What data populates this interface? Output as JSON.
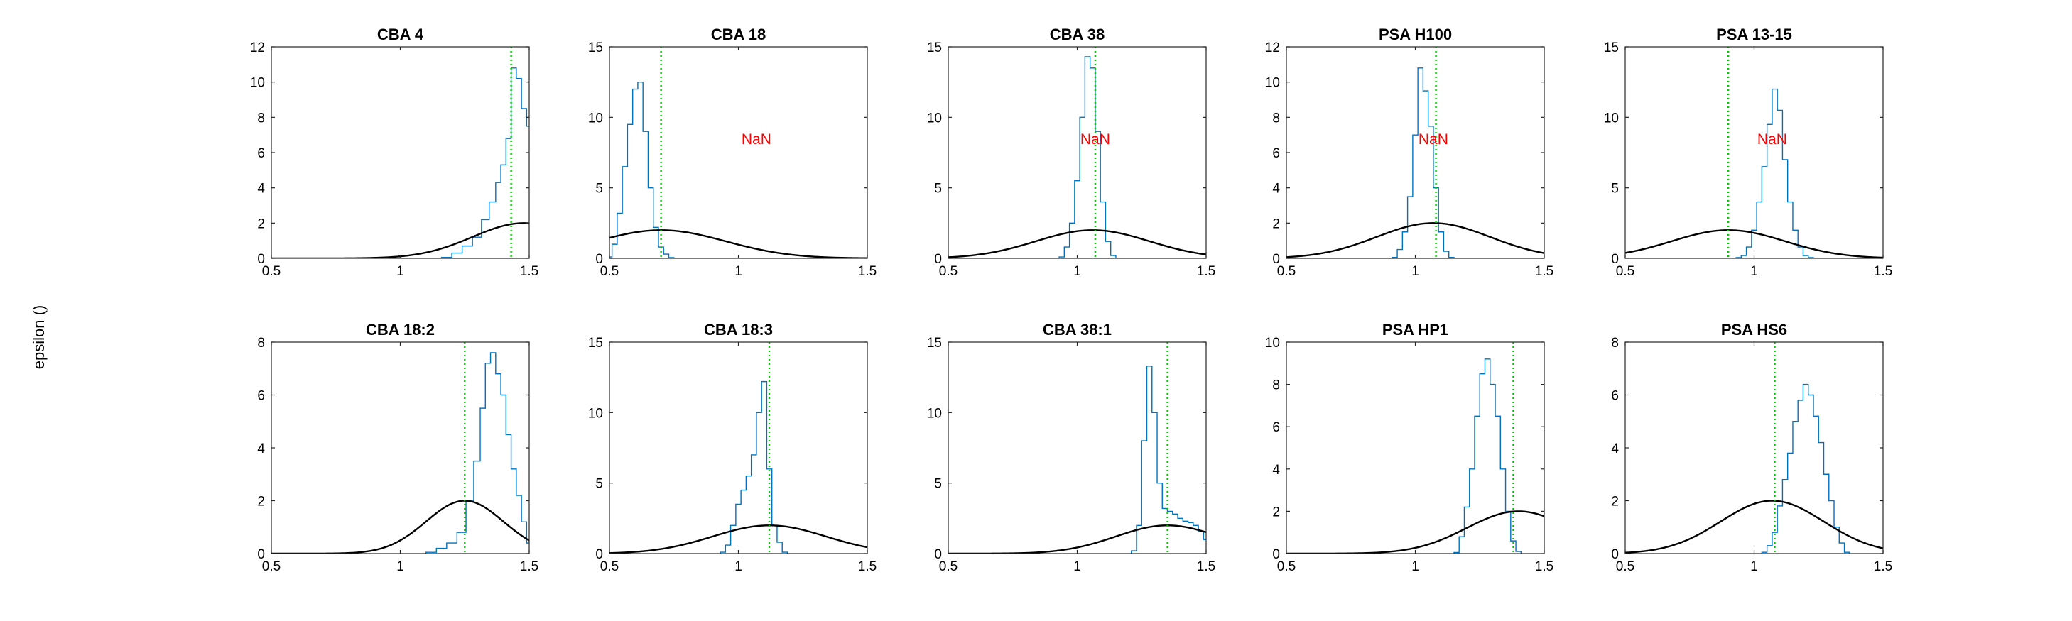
{
  "figure": {
    "ylabel": "epsilon ()",
    "colors": {
      "histogram": "#0072BD",
      "prior": "#000000",
      "marker": "#00CC00",
      "nan_text": "#FF0000"
    }
  },
  "chart_data": [
    {
      "type": "line",
      "title": "CBA 4",
      "xlim": [
        0.5,
        1.5
      ],
      "ylim": [
        0,
        12
      ],
      "xticks": [
        "0.5",
        "1",
        "1.5"
      ],
      "yticks": [
        "0",
        "2",
        "4",
        "6",
        "8",
        "10",
        "12"
      ],
      "marker_x": 1.43,
      "nan_label": "",
      "prior": {
        "mu": 1.48,
        "sigma": 0.2,
        "peak": 2
      },
      "hist": {
        "x": [
          1.18,
          1.22,
          1.26,
          1.3,
          1.33,
          1.36,
          1.38,
          1.4,
          1.42,
          1.44,
          1.46,
          1.48,
          1.5
        ],
        "y": [
          0.05,
          0.3,
          0.7,
          1.2,
          2.2,
          3.2,
          4.3,
          5.3,
          6.8,
          10.8,
          10.2,
          8.5,
          7.5
        ]
      }
    },
    {
      "type": "line",
      "title": "CBA 18",
      "xlim": [
        0.5,
        1.5
      ],
      "ylim": [
        0,
        15
      ],
      "xticks": [
        "0.5",
        "1",
        "1.5"
      ],
      "yticks": [
        "0",
        "5",
        "10",
        "15"
      ],
      "marker_x": 0.7,
      "nan_label": "NaN",
      "prior": {
        "mu": 0.7,
        "sigma": 0.25,
        "peak": 2
      },
      "hist": {
        "x": [
          0.5,
          0.52,
          0.54,
          0.56,
          0.58,
          0.6,
          0.62,
          0.64,
          0.66,
          0.68,
          0.7,
          0.72,
          0.74
        ],
        "y": [
          0.1,
          1.0,
          3.2,
          6.5,
          9.5,
          12.0,
          12.5,
          9.0,
          5.0,
          2.2,
          0.8,
          0.3,
          0.05
        ]
      }
    },
    {
      "type": "line",
      "title": "CBA 38",
      "xlim": [
        0.5,
        1.5
      ],
      "ylim": [
        0,
        15
      ],
      "xticks": [
        "0.5",
        "1",
        "1.5"
      ],
      "yticks": [
        "0",
        "5",
        "10",
        "15"
      ],
      "marker_x": 1.07,
      "nan_label": "NaN",
      "prior": {
        "mu": 1.06,
        "sigma": 0.22,
        "peak": 2
      },
      "hist": {
        "x": [
          0.94,
          0.96,
          0.98,
          1.0,
          1.02,
          1.04,
          1.06,
          1.08,
          1.1,
          1.12,
          1.14
        ],
        "y": [
          0.1,
          0.8,
          2.5,
          5.5,
          10.0,
          14.3,
          13.5,
          9.0,
          4.0,
          1.2,
          0.2
        ]
      }
    },
    {
      "type": "line",
      "title": "PSA H100",
      "xlim": [
        0.5,
        1.5
      ],
      "ylim": [
        0,
        12
      ],
      "xticks": [
        "0.5",
        "1",
        "1.5"
      ],
      "yticks": [
        "0",
        "2",
        "4",
        "6",
        "8",
        "10",
        "12"
      ],
      "marker_x": 1.08,
      "nan_label": "NaN",
      "prior": {
        "mu": 1.07,
        "sigma": 0.22,
        "peak": 2
      },
      "hist": {
        "x": [
          0.92,
          0.94,
          0.96,
          0.98,
          1.0,
          1.02,
          1.04,
          1.06,
          1.08,
          1.1,
          1.12,
          1.14
        ],
        "y": [
          0.05,
          0.5,
          1.5,
          3.5,
          7.0,
          10.8,
          9.5,
          7.5,
          4.0,
          1.5,
          0.4,
          0.05
        ]
      }
    },
    {
      "type": "line",
      "title": "PSA 13-15",
      "xlim": [
        0.5,
        1.5
      ],
      "ylim": [
        0,
        15
      ],
      "xticks": [
        "0.5",
        "1",
        "1.5"
      ],
      "yticks": [
        "0",
        "5",
        "10",
        "15"
      ],
      "marker_x": 0.9,
      "nan_label": "NaN",
      "prior": {
        "mu": 0.9,
        "sigma": 0.22,
        "peak": 2
      },
      "hist": {
        "x": [
          0.94,
          0.96,
          0.98,
          1.0,
          1.02,
          1.04,
          1.06,
          1.08,
          1.1,
          1.12,
          1.14,
          1.16,
          1.18,
          1.2,
          1.22
        ],
        "y": [
          0.05,
          0.2,
          0.8,
          2.0,
          4.0,
          6.5,
          9.5,
          12.0,
          10.5,
          7.0,
          4.0,
          2.0,
          0.8,
          0.2,
          0.05
        ]
      }
    },
    {
      "type": "line",
      "title": "CBA 18:2",
      "xlim": [
        0.5,
        1.5
      ],
      "ylim": [
        0,
        8
      ],
      "xticks": [
        "0.5",
        "1",
        "1.5"
      ],
      "yticks": [
        "0",
        "2",
        "4",
        "6",
        "8"
      ],
      "marker_x": 1.25,
      "nan_label": "",
      "prior": {
        "mu": 1.25,
        "sigma": 0.15,
        "peak": 2
      },
      "hist": {
        "x": [
          1.12,
          1.16,
          1.2,
          1.24,
          1.27,
          1.3,
          1.32,
          1.34,
          1.36,
          1.38,
          1.4,
          1.42,
          1.44,
          1.46,
          1.48,
          1.5
        ],
        "y": [
          0.05,
          0.2,
          0.4,
          0.8,
          2.0,
          3.5,
          5.5,
          7.2,
          7.6,
          6.8,
          6.0,
          4.5,
          3.2,
          2.2,
          1.2,
          0.4
        ]
      }
    },
    {
      "type": "line",
      "title": "CBA 18:3",
      "xlim": [
        0.5,
        1.5
      ],
      "ylim": [
        0,
        15
      ],
      "xticks": [
        "0.5",
        "1",
        "1.5"
      ],
      "yticks": [
        "0",
        "5",
        "10",
        "15"
      ],
      "marker_x": 1.12,
      "nan_label": "",
      "prior": {
        "mu": 1.12,
        "sigma": 0.22,
        "peak": 2
      },
      "hist": {
        "x": [
          0.94,
          0.96,
          0.98,
          1.0,
          1.02,
          1.04,
          1.06,
          1.08,
          1.1,
          1.12,
          1.14,
          1.16,
          1.18
        ],
        "y": [
          0.1,
          0.6,
          2.0,
          3.5,
          4.5,
          5.5,
          7.0,
          10.0,
          12.2,
          6.0,
          2.0,
          0.8,
          0.1
        ]
      }
    },
    {
      "type": "line",
      "title": "CBA 38:1",
      "xlim": [
        0.5,
        1.5
      ],
      "ylim": [
        0,
        15
      ],
      "xticks": [
        "0.5",
        "1",
        "1.5"
      ],
      "yticks": [
        "0",
        "5",
        "10",
        "15"
      ],
      "marker_x": 1.35,
      "nan_label": "",
      "prior": {
        "mu": 1.35,
        "sigma": 0.2,
        "peak": 2
      },
      "hist": {
        "x": [
          1.22,
          1.24,
          1.26,
          1.28,
          1.3,
          1.32,
          1.34,
          1.36,
          1.38,
          1.4,
          1.42,
          1.44,
          1.46,
          1.48,
          1.5
        ],
        "y": [
          0.2,
          2.0,
          8.0,
          13.3,
          10.0,
          5.0,
          3.2,
          3.0,
          2.8,
          2.5,
          2.3,
          2.2,
          2.0,
          1.6,
          1.0
        ]
      }
    },
    {
      "type": "line",
      "title": "PSA HP1",
      "xlim": [
        0.5,
        1.5
      ],
      "ylim": [
        0,
        10
      ],
      "xticks": [
        "0.5",
        "1",
        "1.5"
      ],
      "yticks": [
        "0",
        "2",
        "4",
        "6",
        "8",
        "10"
      ],
      "marker_x": 1.38,
      "nan_label": "",
      "prior": {
        "mu": 1.4,
        "sigma": 0.2,
        "peak": 2
      },
      "hist": {
        "x": [
          1.16,
          1.18,
          1.2,
          1.22,
          1.24,
          1.26,
          1.28,
          1.3,
          1.32,
          1.34,
          1.36,
          1.38,
          1.4
        ],
        "y": [
          0.05,
          0.8,
          2.2,
          4.0,
          6.5,
          8.5,
          9.2,
          8.0,
          6.5,
          4.0,
          2.0,
          0.6,
          0.1
        ]
      }
    },
    {
      "type": "line",
      "title": "PSA HS6",
      "xlim": [
        0.5,
        1.5
      ],
      "ylim": [
        0,
        8
      ],
      "xticks": [
        "0.5",
        "1",
        "1.5"
      ],
      "yticks": [
        "0",
        "2",
        "4",
        "6",
        "8"
      ],
      "marker_x": 1.08,
      "nan_label": "",
      "prior": {
        "mu": 1.07,
        "sigma": 0.2,
        "peak": 2
      },
      "hist": {
        "x": [
          1.04,
          1.06,
          1.08,
          1.1,
          1.12,
          1.14,
          1.16,
          1.18,
          1.2,
          1.22,
          1.24,
          1.26,
          1.28,
          1.3,
          1.32,
          1.34,
          1.36
        ],
        "y": [
          0.05,
          0.3,
          0.8,
          1.8,
          2.8,
          3.8,
          5.0,
          5.8,
          6.4,
          6.0,
          5.2,
          4.2,
          3.0,
          2.0,
          1.0,
          0.4,
          0.05
        ]
      }
    }
  ]
}
